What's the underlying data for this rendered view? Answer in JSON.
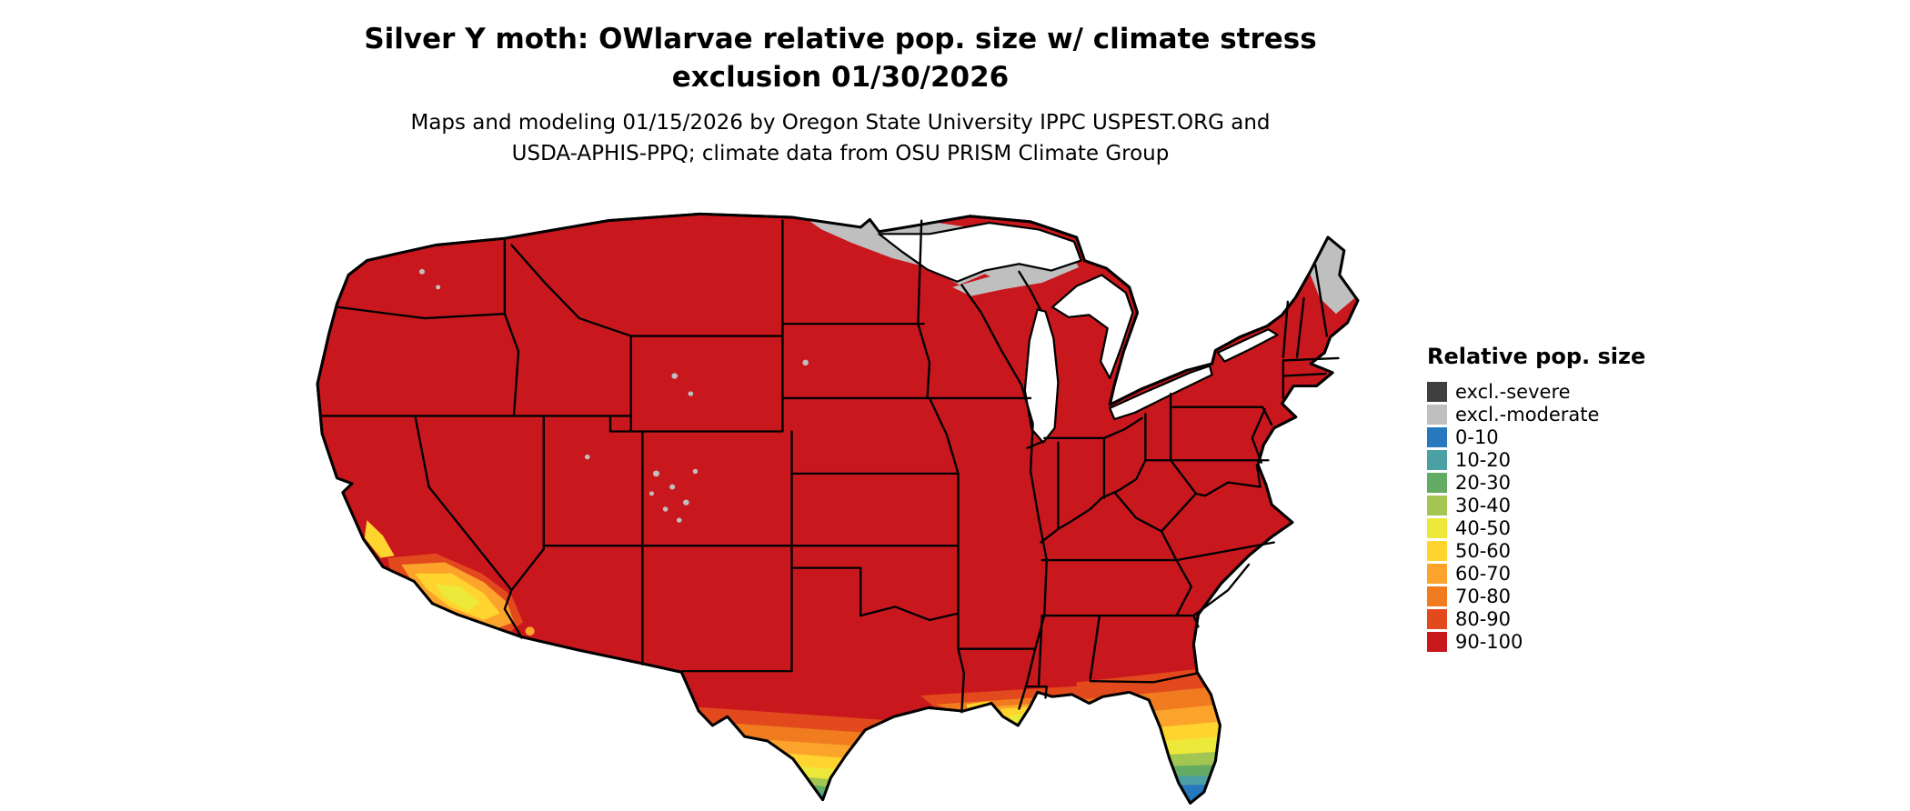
{
  "title": {
    "line1": "Silver Y moth: OWlarvae relative pop. size w/ climate stress",
    "line2": "exclusion 01/30/2026"
  },
  "subtitle": {
    "line1": "Maps and modeling 01/15/2026 by Oregon State University IPPC USPEST.ORG and",
    "line2": "USDA-APHIS-PPQ; climate data from OSU PRISM Climate Group"
  },
  "map": {
    "name": "Contiguous United States relative population size map",
    "background_color": "#FFFFFF",
    "border_color": "#000000"
  },
  "legend": {
    "title": "Relative pop. size",
    "items": [
      {
        "label": "excl.-severe",
        "color": "#3F3F3F"
      },
      {
        "label": "excl.-moderate",
        "color": "#BFBFBF"
      },
      {
        "label": "0-10",
        "color": "#2878BE"
      },
      {
        "label": "10-20",
        "color": "#4BA0A5"
      },
      {
        "label": "20-30",
        "color": "#63AB62"
      },
      {
        "label": "30-40",
        "color": "#A3C653"
      },
      {
        "label": "40-50",
        "color": "#EDE93B"
      },
      {
        "label": "50-60",
        "color": "#FFD42E"
      },
      {
        "label": "60-70",
        "color": "#FCA32B"
      },
      {
        "label": "70-80",
        "color": "#F07C1F"
      },
      {
        "label": "80-90",
        "color": "#E2491D"
      },
      {
        "label": "90-100",
        "color": "#C9181D"
      }
    ]
  }
}
